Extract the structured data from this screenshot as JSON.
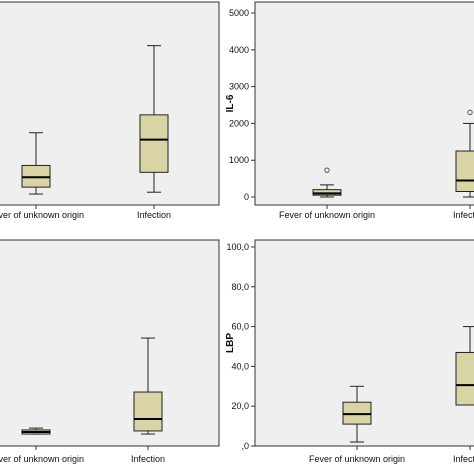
{
  "chart_data": [
    {
      "type": "box",
      "color": "#d9d4a6",
      "categories": [
        "Fever of unknown origin",
        "Infection"
      ],
      "ylim": [
        0,
        100
      ],
      "boxes": [
        {
          "low": 5.4,
          "q1": 8.8,
          "median": 13.7,
          "q3": 19.5,
          "high": 35.6
        },
        {
          "low": 6.3,
          "q1": 16.1,
          "median": 32.2,
          "q3": 44.4,
          "high": 78.5
        }
      ]
    },
    {
      "type": "box",
      "color": "#d9d4a6",
      "ylabel": "IL-6",
      "categories": [
        "Fever of unknown origin",
        "Infection"
      ],
      "ylim": [
        -217,
        5300
      ],
      "yticks": [
        0,
        1000,
        2000,
        3000,
        4000,
        5000
      ],
      "boxes": [
        {
          "low": 0,
          "q1": 50,
          "median": 100,
          "q3": 200,
          "high": 330,
          "outliers": [
            730
          ]
        },
        {
          "low": 0,
          "q1": 150,
          "median": 450,
          "q3": 1250,
          "high": 2000,
          "outliers": [
            2300
          ]
        }
      ]
    },
    {
      "type": "box",
      "color": "#d9d4a6",
      "categories": [
        "Fever of unknown origin",
        "Infection"
      ],
      "ylim": [
        0,
        100
      ],
      "boxes": [
        {
          "low": 5.8,
          "q1": 5.8,
          "median": 6.8,
          "q3": 7.8,
          "high": 8.7
        },
        {
          "low": 5.8,
          "q1": 7.3,
          "median": 13.1,
          "q3": 26.2,
          "high": 52.4
        }
      ]
    },
    {
      "type": "box",
      "color": "#d9d4a6",
      "ylabel": "LBP",
      "categories": [
        "Fever of unknown origin",
        "Infection"
      ],
      "ylim": [
        0,
        103.5
      ],
      "yticks": [
        {
          "value": 0,
          "label": ",0"
        },
        {
          "value": 20,
          "label": "20,0"
        },
        {
          "value": 40,
          "label": "40,0"
        },
        {
          "value": 60,
          "label": "60,0"
        },
        {
          "value": 80,
          "label": "80,0"
        },
        {
          "value": 100,
          "label": "100,0"
        }
      ],
      "boxes": [
        {
          "low": 2,
          "q1": 11,
          "median": 16,
          "q3": 22,
          "high": 30
        },
        {
          "low": 20.6,
          "q1": 20.6,
          "median": 30.6,
          "q3": 47,
          "high": 60
        }
      ]
    }
  ]
}
